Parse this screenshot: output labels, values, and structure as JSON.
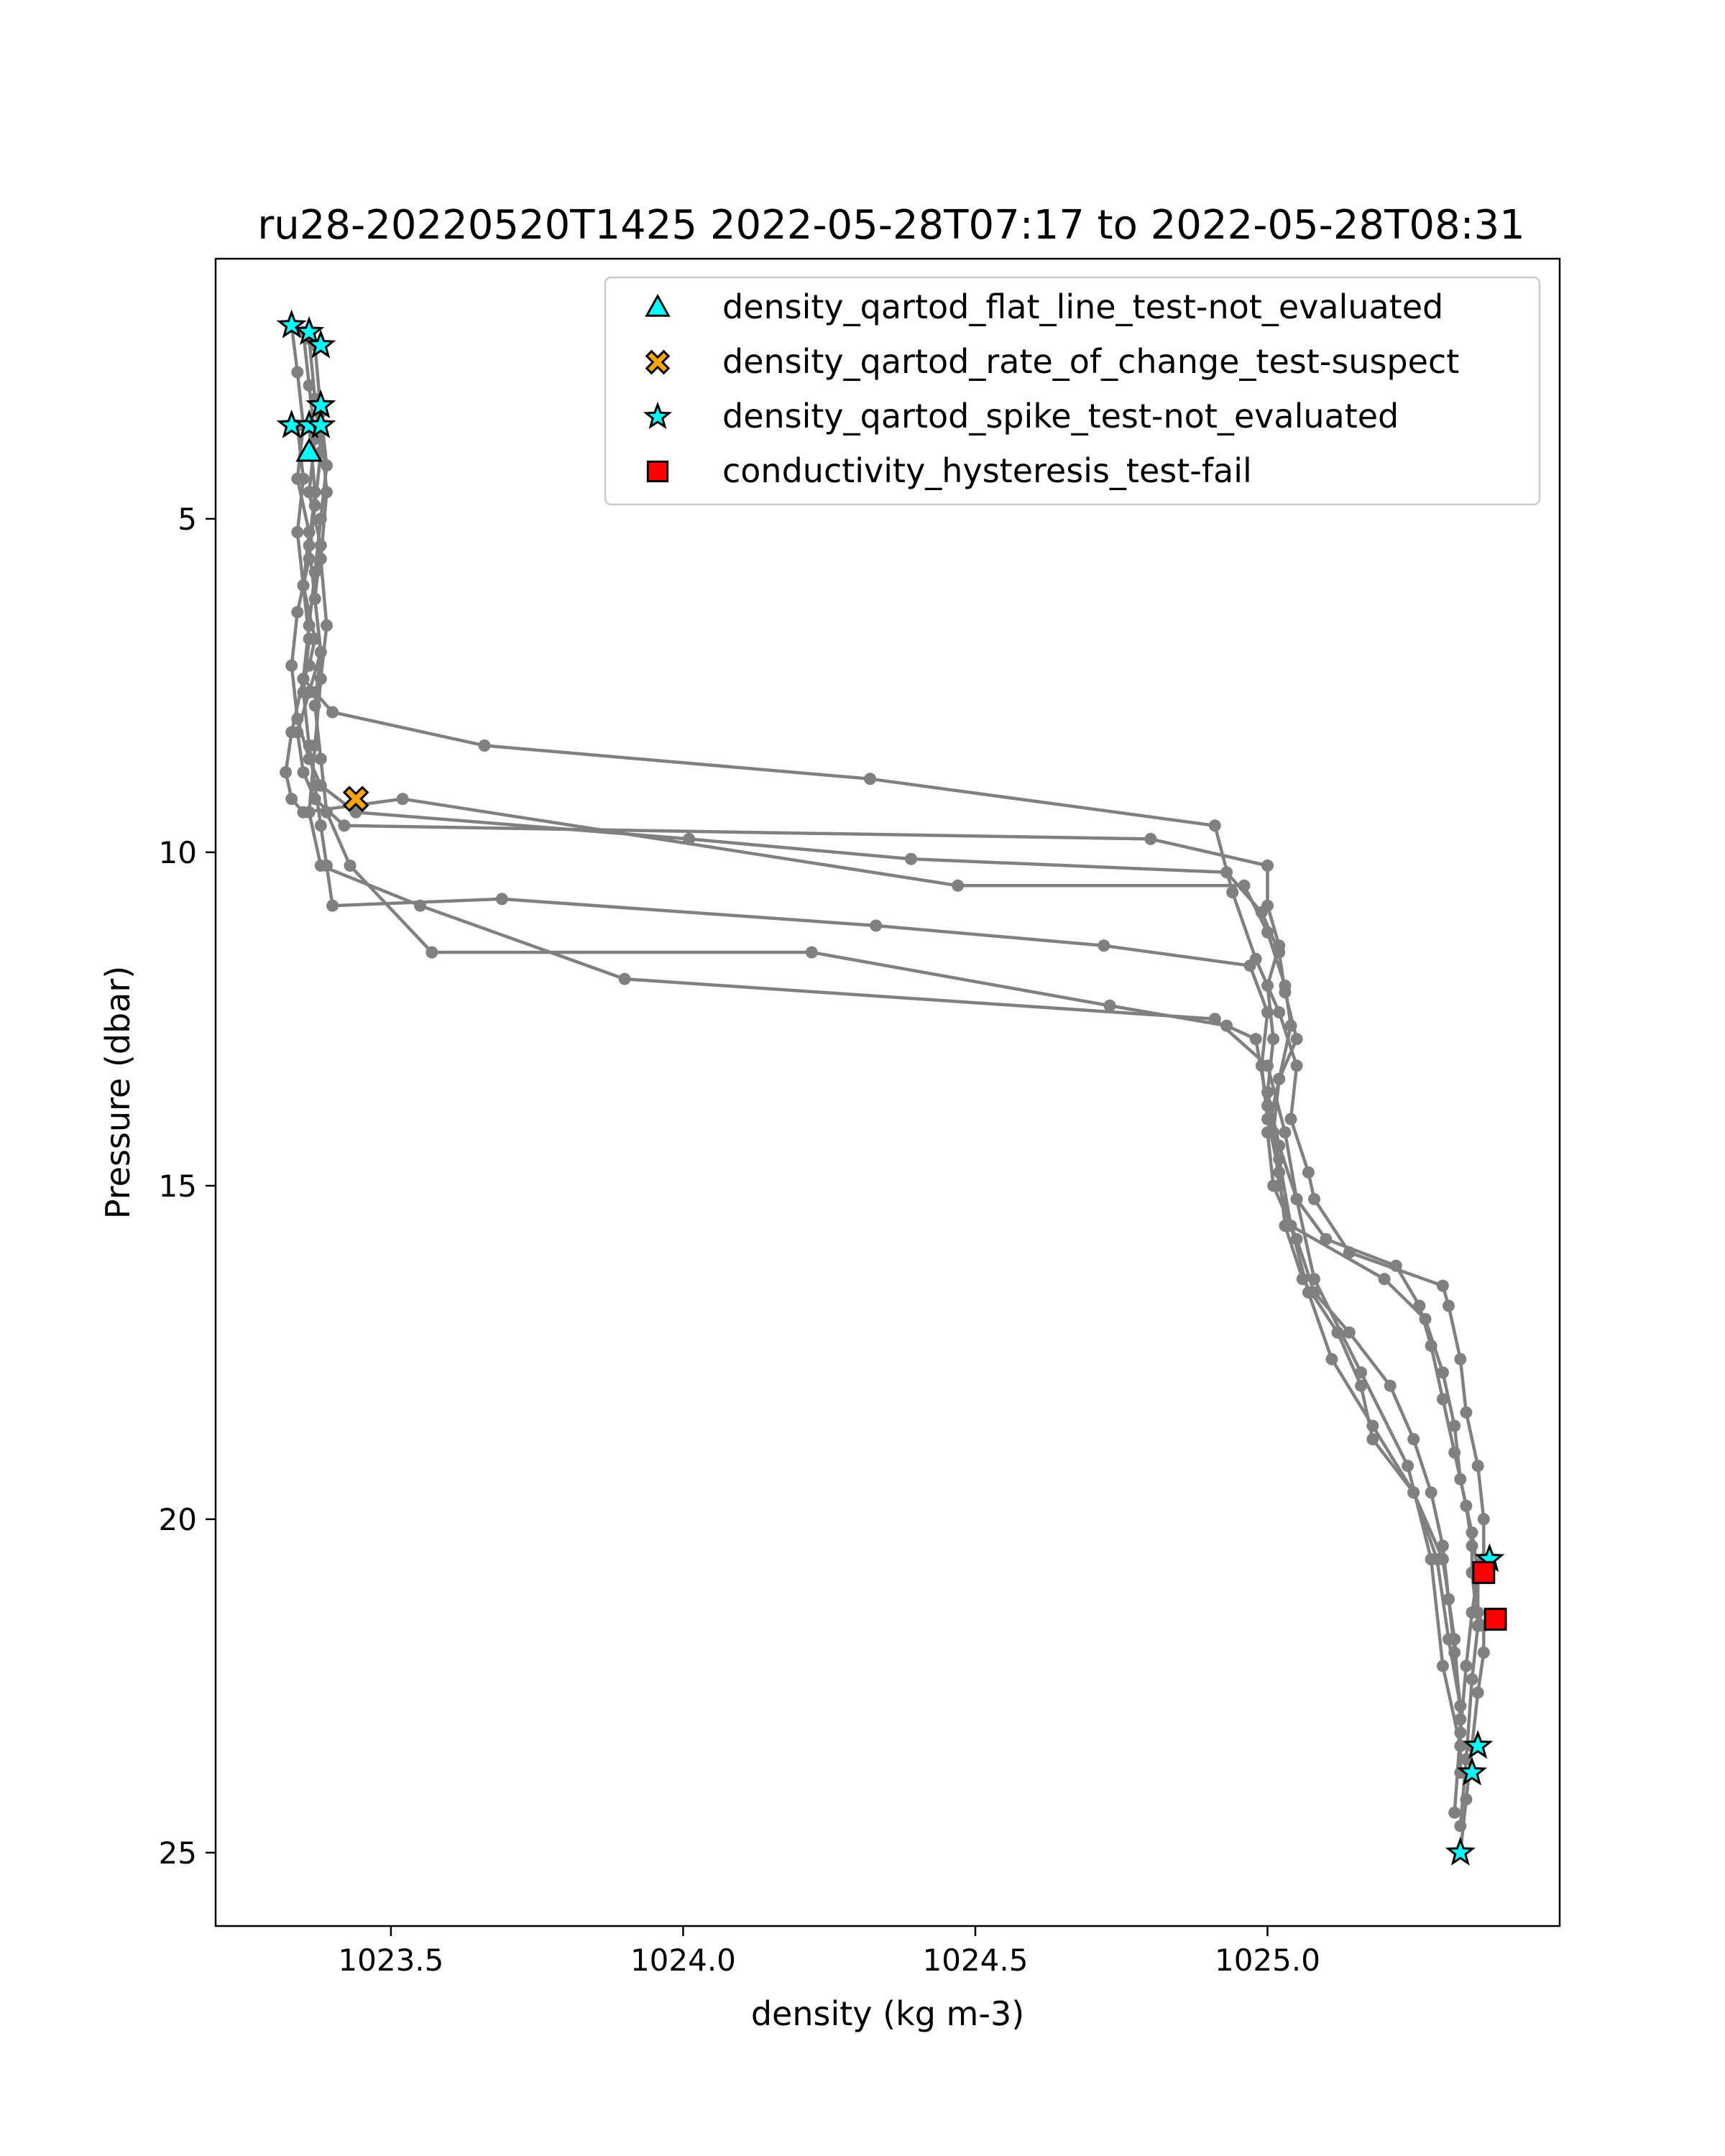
{
  "chart_data": {
    "type": "scatter",
    "title": "ru28-20220520T1425 2022-05-28T07:17 to 2022-05-28T08:31",
    "xlabel": "density (kg m-3)",
    "ylabel": "Pressure (dbar)",
    "xlim": [
      1023.2,
      1025.5
    ],
    "ylim": [
      26.1,
      1.1
    ],
    "y_inverted": true,
    "xticks": [
      1023.5,
      1024.0,
      1024.5,
      1025.0
    ],
    "xtick_labels": [
      "1023.5",
      "1024.0",
      "1024.5",
      "1025.0"
    ],
    "yticks": [
      5,
      10,
      15,
      20,
      25
    ],
    "ytick_labels": [
      "5",
      "10",
      "15",
      "20",
      "25"
    ],
    "legend_position": "upper right",
    "profiles": [
      {
        "x": [
          1023.33,
          1023.34,
          1023.35,
          1023.34,
          1023.36,
          1023.35,
          1023.37,
          1023.36,
          1023.35,
          1023.37,
          1023.4,
          1023.66,
          1024.32,
          1024.91,
          1024.94,
          1024.98,
          1025.02,
          1025.05,
          1025.04,
          1025.07,
          1025.08,
          1025.14,
          1025.3,
          1025.31,
          1025.33,
          1025.34,
          1025.36,
          1025.37,
          1025.37,
          1025.36,
          1025.36,
          1025.37,
          1025.37,
          1025.36,
          1025.35,
          1025.34,
          1025.33
        ],
        "y": [
          2.1,
          2.8,
          3.6,
          4.4,
          5.2,
          6.0,
          6.8,
          7.2,
          7.4,
          7.6,
          7.9,
          8.4,
          8.9,
          9.6,
          10.6,
          11.6,
          12.4,
          13.2,
          14.0,
          14.8,
          15.2,
          16.0,
          16.5,
          16.8,
          17.6,
          18.4,
          19.2,
          20.0,
          20.6,
          20.8,
          21.4,
          21.6,
          22.0,
          22.6,
          23.4,
          24.2,
          25.0
        ]
      },
      {
        "x": [
          1023.35,
          1023.36,
          1023.37,
          1023.36,
          1023.38,
          1023.37,
          1023.38,
          1023.36,
          1023.34,
          1023.35,
          1023.37,
          1023.42,
          1024.8,
          1025.0,
          1025.0,
          1025.02,
          1025.0,
          1025.01,
          1025.0,
          1025.02,
          1025.05,
          1025.1,
          1025.22,
          1025.26,
          1025.28,
          1025.3,
          1025.32,
          1025.34,
          1025.35,
          1025.35,
          1025.36,
          1025.35,
          1025.34,
          1025.33
        ],
        "y": [
          2.2,
          3.0,
          3.8,
          4.6,
          5.4,
          6.2,
          7.0,
          7.6,
          8.2,
          8.8,
          9.2,
          9.6,
          9.8,
          10.2,
          10.8,
          11.4,
          12.0,
          12.8,
          13.6,
          14.4,
          15.2,
          15.8,
          16.2,
          16.8,
          17.4,
          18.2,
          19.0,
          19.8,
          20.4,
          20.8,
          21.6,
          22.4,
          23.6,
          24.6
        ]
      },
      {
        "x": [
          1023.36,
          1023.37,
          1023.38,
          1023.37,
          1023.36,
          1023.34,
          1023.33,
          1023.34,
          1023.36,
          1023.38,
          1023.44,
          1024.01,
          1024.39,
          1024.93,
          1024.99,
          1025.02,
          1025.03,
          1025.05,
          1025.02,
          1025.01,
          1025.02,
          1025.04,
          1025.2,
          1025.27,
          1025.3,
          1025.32,
          1025.33,
          1025.35,
          1025.36,
          1025.35,
          1025.34,
          1025.33,
          1025.32
        ],
        "y": [
          2.3,
          3.2,
          4.0,
          4.8,
          5.6,
          6.4,
          7.2,
          8.0,
          8.6,
          9.0,
          9.4,
          9.8,
          10.1,
          10.3,
          10.9,
          11.5,
          12.1,
          12.8,
          13.4,
          14.2,
          15.0,
          15.6,
          16.4,
          17.0,
          17.8,
          18.6,
          19.4,
          20.2,
          20.8,
          21.4,
          22.2,
          23.2,
          24.4
        ]
      },
      {
        "x": [
          1023.37,
          1023.38,
          1023.39,
          1023.38,
          1023.37,
          1023.36,
          1023.35,
          1023.33,
          1023.32,
          1023.33,
          1023.35,
          1023.52,
          1024.47,
          1024.96,
          1025.0,
          1025.03,
          1025.04,
          1025.02,
          1025.0,
          1025.01,
          1025.05,
          1025.08,
          1025.14,
          1025.21,
          1025.25,
          1025.28,
          1025.3,
          1025.31,
          1025.32,
          1025.33,
          1025.33
        ],
        "y": [
          2.4,
          3.4,
          4.2,
          5.0,
          5.8,
          6.6,
          7.4,
          8.2,
          8.8,
          9.2,
          9.4,
          9.2,
          10.5,
          10.5,
          11.2,
          12.0,
          12.6,
          13.4,
          14.2,
          15.0,
          15.8,
          16.6,
          17.2,
          18.0,
          18.8,
          19.6,
          20.4,
          21.2,
          22.0,
          22.8,
          23.8
        ]
      },
      {
        "x": [
          1023.34,
          1023.35,
          1023.34,
          1023.35,
          1023.36,
          1023.35,
          1023.36,
          1023.37,
          1023.38,
          1023.39,
          1023.4,
          1023.69,
          1024.33,
          1024.72,
          1024.97,
          1025.0,
          1024.99,
          1025.0,
          1025.02,
          1025.03,
          1025.06,
          1025.12,
          1025.16,
          1025.18,
          1025.25,
          1025.3,
          1025.32,
          1025.33
        ],
        "y": [
          3.6,
          4.4,
          5.2,
          6.0,
          6.8,
          7.6,
          8.4,
          9.0,
          9.6,
          10.2,
          10.8,
          10.7,
          11.1,
          11.4,
          11.7,
          12.4,
          13.2,
          14.0,
          14.8,
          15.6,
          16.4,
          17.2,
          18.0,
          18.8,
          19.6,
          20.6,
          21.8,
          23.0
        ]
      },
      {
        "x": [
          1023.36,
          1023.37,
          1023.36,
          1023.37,
          1023.38,
          1023.37,
          1023.38,
          1023.39,
          1023.43,
          1023.57,
          1024.22,
          1024.73,
          1024.93,
          1024.98,
          1025.0,
          1025.02,
          1025.04,
          1025.07,
          1025.11,
          1025.18,
          1025.25,
          1025.29,
          1025.31,
          1025.33
        ],
        "y": [
          3.6,
          4.6,
          5.4,
          6.2,
          7.0,
          7.8,
          8.6,
          9.4,
          10.2,
          11.5,
          11.5,
          12.3,
          12.6,
          12.8,
          13.8,
          14.6,
          15.6,
          16.6,
          17.6,
          18.6,
          19.6,
          20.6,
          21.8,
          22.8
        ]
      },
      {
        "x": [
          1023.38,
          1023.39,
          1023.38,
          1023.39,
          1023.38,
          1023.37,
          1023.36,
          1023.38,
          1023.55,
          1023.9,
          1024.91,
          1025.0,
          1025.03,
          1025.05,
          1025.08,
          1025.16,
          1025.24,
          1025.28,
          1025.3,
          1025.33
        ],
        "y": [
          3.6,
          4.6,
          5.6,
          6.6,
          7.4,
          8.4,
          9.4,
          10.2,
          10.8,
          11.9,
          12.5,
          13.2,
          14.2,
          15.2,
          16.4,
          17.8,
          19.2,
          20.6,
          22.2,
          23.4
        ]
      }
    ],
    "series": [
      {
        "name": "density_qartod_flat_line_test-not_evaluated",
        "marker": "triangle",
        "color": "#00ffff",
        "points": [
          {
            "x": 1023.36,
            "y": 4.0
          }
        ]
      },
      {
        "name": "density_qartod_rate_of_change_test-suspect",
        "marker": "x",
        "color": "#ffa500",
        "points": [
          {
            "x": 1023.44,
            "y": 9.2
          }
        ]
      },
      {
        "name": "density_qartod_spike_test-not_evaluated",
        "marker": "star",
        "color": "#00ffff",
        "points": [
          {
            "x": 1023.33,
            "y": 2.1
          },
          {
            "x": 1023.36,
            "y": 2.2
          },
          {
            "x": 1023.38,
            "y": 2.4
          },
          {
            "x": 1023.38,
            "y": 3.3
          },
          {
            "x": 1023.33,
            "y": 3.6
          },
          {
            "x": 1023.36,
            "y": 3.6
          },
          {
            "x": 1023.38,
            "y": 3.6
          },
          {
            "x": 1025.38,
            "y": 20.6
          },
          {
            "x": 1025.36,
            "y": 23.4
          },
          {
            "x": 1025.35,
            "y": 23.8
          },
          {
            "x": 1025.33,
            "y": 25.0
          }
        ]
      },
      {
        "name": "conductivity_hysteresis_test-fail",
        "marker": "square",
        "color": "#ff0000",
        "points": [
          {
            "x": 1025.37,
            "y": 20.8
          },
          {
            "x": 1025.39,
            "y": 21.5
          }
        ]
      }
    ]
  }
}
